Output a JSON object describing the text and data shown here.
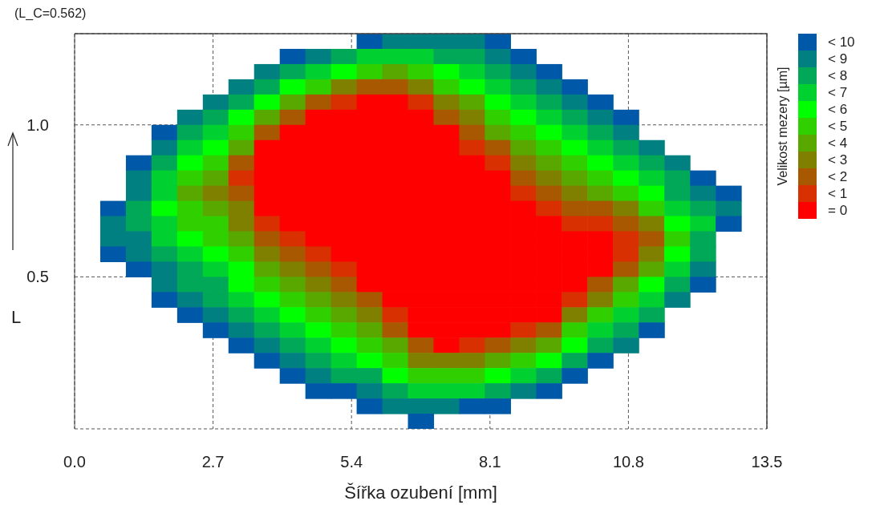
{
  "chart_data": {
    "type": "heatmap",
    "xlabel": "Šířka ozubení [mm]",
    "ylabel": "L",
    "clabel": "Velikost mezery [µm]",
    "annotations": [
      "(L_C=0.562)"
    ],
    "xlim": [
      0,
      13.5
    ],
    "xticks": [
      {
        "value": 0,
        "label": "0.0"
      },
      {
        "value": 2.7,
        "label": "2.7"
      },
      {
        "value": 5.4,
        "label": "5.4"
      },
      {
        "value": 8.1,
        "label": "8.1"
      },
      {
        "value": 10.8,
        "label": "10.8"
      },
      {
        "value": 13.5,
        "label": "13.5"
      }
    ],
    "ylim": [
      0,
      1.3
    ],
    "yticks": [
      {
        "value": 0.5,
        "label": "0.5"
      },
      {
        "value": 1,
        "label": "1.0"
      }
    ],
    "grid": true,
    "clim": [
      -0.5,
      10.5
    ],
    "cticks": [
      {
        "value": 0,
        "label": "= 0"
      },
      {
        "value": 1,
        "label": "< 1"
      },
      {
        "value": 2,
        "label": "< 2"
      },
      {
        "value": 3,
        "label": "< 3"
      },
      {
        "value": 4,
        "label": "< 4"
      },
      {
        "value": 5,
        "label": "< 5"
      },
      {
        "value": 6,
        "label": "< 6"
      },
      {
        "value": 7,
        "label": "< 7"
      },
      {
        "value": 8,
        "label": "< 8"
      },
      {
        "value": 9,
        "label": "< 9"
      },
      {
        "value": 10,
        "label": "< 10"
      }
    ],
    "colors": [
      "#ff0000",
      "#d83000",
      "#a85800",
      "#808000",
      "#58a800",
      "#30d000",
      "#00ff00",
      "#00d030",
      "#00a858",
      "#008080",
      "#0058a8"
    ],
    "cells": [
      [
        null,
        null,
        null,
        null,
        null,
        null,
        null,
        null,
        null,
        null,
        null,
        10,
        9,
        9,
        9,
        9,
        10,
        null,
        null,
        null,
        null,
        null,
        null,
        null,
        null,
        null,
        null
      ],
      [
        null,
        null,
        null,
        null,
        null,
        null,
        null,
        null,
        10,
        9,
        8,
        7,
        7,
        7,
        8,
        8,
        9,
        10,
        null,
        null,
        null,
        null,
        null,
        null,
        null,
        null,
        null
      ],
      [
        null,
        null,
        null,
        null,
        null,
        null,
        null,
        9,
        8,
        7,
        6,
        5,
        4,
        5,
        6,
        7,
        8,
        9,
        10,
        null,
        null,
        null,
        null,
        null,
        null,
        null,
        null
      ],
      [
        null,
        null,
        null,
        null,
        null,
        null,
        9,
        8,
        6,
        5,
        3,
        2,
        2,
        3,
        5,
        6,
        7,
        8,
        9,
        10,
        null,
        null,
        null,
        null,
        null,
        null,
        null
      ],
      [
        null,
        null,
        null,
        null,
        null,
        9,
        8,
        6,
        4,
        2,
        1,
        0,
        0,
        1,
        3,
        4,
        6,
        7,
        8,
        9,
        10,
        null,
        null,
        null,
        null,
        null,
        null
      ],
      [
        null,
        null,
        null,
        null,
        9,
        8,
        6,
        4,
        2,
        0,
        0,
        0,
        0,
        0,
        2,
        3,
        5,
        6,
        7,
        8,
        9,
        10,
        null,
        null,
        null,
        null,
        null
      ],
      [
        null,
        null,
        null,
        10,
        8,
        7,
        5,
        2,
        0,
        0,
        0,
        0,
        0,
        0,
        0,
        2,
        4,
        5,
        6,
        7,
        8,
        9,
        null,
        null,
        null,
        null,
        null
      ],
      [
        null,
        null,
        null,
        9,
        7,
        6,
        4,
        0,
        0,
        0,
        0,
        0,
        0,
        0,
        0,
        1,
        2,
        4,
        5,
        6,
        7,
        8,
        9,
        null,
        null,
        null,
        null
      ],
      [
        null,
        null,
        10,
        8,
        6,
        5,
        2,
        0,
        0,
        0,
        0,
        0,
        0,
        0,
        0,
        0,
        1,
        3,
        4,
        5,
        6,
        7,
        8,
        9,
        null,
        null,
        null
      ],
      [
        null,
        null,
        9,
        7,
        5,
        4,
        1,
        0,
        0,
        0,
        0,
        0,
        0,
        0,
        0,
        0,
        0,
        2,
        3,
        4,
        5,
        6,
        7,
        8,
        10,
        null,
        null
      ],
      [
        null,
        null,
        9,
        7,
        4,
        3,
        2,
        0,
        0,
        0,
        0,
        0,
        0,
        0,
        0,
        0,
        0,
        1,
        2,
        3,
        4,
        5,
        6,
        8,
        9,
        10,
        null
      ],
      [
        null,
        10,
        8,
        6,
        5,
        4,
        3,
        0,
        0,
        0,
        0,
        0,
        0,
        0,
        0,
        0,
        0,
        0,
        1,
        2,
        2,
        3,
        5,
        7,
        8,
        9,
        null
      ],
      [
        null,
        9,
        8,
        7,
        5,
        5,
        3,
        1,
        0,
        0,
        0,
        0,
        0,
        0,
        0,
        0,
        0,
        0,
        0,
        1,
        1,
        2,
        3,
        6,
        7,
        10,
        null
      ],
      [
        null,
        9,
        9,
        7,
        6,
        5,
        4,
        2,
        1,
        0,
        0,
        0,
        0,
        0,
        0,
        0,
        0,
        0,
        0,
        0,
        0,
        1,
        2,
        5,
        8,
        null,
        null
      ],
      [
        null,
        10,
        9,
        8,
        7,
        6,
        5,
        3,
        2,
        1,
        0,
        0,
        0,
        0,
        0,
        0,
        0,
        0,
        0,
        0,
        0,
        1,
        3,
        6,
        8,
        null,
        null
      ],
      [
        null,
        null,
        10,
        9,
        8,
        7,
        6,
        4,
        3,
        2,
        1,
        0,
        0,
        0,
        0,
        0,
        0,
        0,
        0,
        0,
        0,
        2,
        4,
        7,
        9,
        null,
        null
      ],
      [
        null,
        null,
        null,
        9,
        8,
        8,
        6,
        5,
        4,
        3,
        2,
        0,
        0,
        0,
        0,
        0,
        0,
        0,
        0,
        0,
        2,
        4,
        6,
        8,
        10,
        null,
        null
      ],
      [
        null,
        null,
        null,
        10,
        9,
        8,
        7,
        6,
        5,
        4,
        3,
        2,
        0,
        0,
        0,
        0,
        0,
        0,
        0,
        1,
        3,
        5,
        7,
        9,
        null,
        null,
        null
      ],
      [
        null,
        null,
        null,
        null,
        10,
        9,
        8,
        7,
        6,
        5,
        4,
        3,
        1,
        0,
        0,
        0,
        0,
        0,
        0,
        3,
        5,
        7,
        8,
        null,
        null,
        null,
        null
      ],
      [
        null,
        null,
        null,
        null,
        null,
        10,
        9,
        8,
        7,
        6,
        5,
        4,
        2,
        0,
        0,
        0,
        0,
        1,
        2,
        5,
        7,
        8,
        10,
        null,
        null,
        null,
        null
      ],
      [
        null,
        null,
        null,
        null,
        null,
        null,
        10,
        9,
        8,
        7,
        6,
        5,
        4,
        2,
        0,
        1,
        2,
        3,
        4,
        6,
        8,
        9,
        null,
        null,
        null,
        null,
        null
      ],
      [
        null,
        null,
        null,
        null,
        null,
        null,
        null,
        10,
        9,
        8,
        7,
        6,
        5,
        3,
        3,
        3,
        4,
        5,
        6,
        8,
        10,
        null,
        null,
        null,
        null,
        null,
        null
      ],
      [
        null,
        null,
        null,
        null,
        null,
        null,
        null,
        null,
        10,
        9,
        8,
        8,
        6,
        5,
        5,
        5,
        6,
        7,
        8,
        10,
        null,
        null,
        null,
        null,
        null,
        null,
        null
      ],
      [
        null,
        null,
        null,
        null,
        null,
        null,
        null,
        null,
        null,
        10,
        10,
        9,
        8,
        7,
        7,
        7,
        8,
        9,
        10,
        null,
        null,
        null,
        null,
        null,
        null,
        null,
        null
      ],
      [
        null,
        null,
        null,
        null,
        null,
        null,
        null,
        null,
        null,
        null,
        null,
        10,
        9,
        9,
        9,
        10,
        10,
        null,
        null,
        null,
        null,
        null,
        null,
        null,
        null,
        null,
        null
      ],
      [
        null,
        null,
        null,
        null,
        null,
        null,
        null,
        null,
        null,
        null,
        null,
        null,
        null,
        10,
        null,
        null,
        null,
        null,
        null,
        null,
        null,
        null,
        null,
        null,
        null,
        null,
        null
      ]
    ]
  }
}
